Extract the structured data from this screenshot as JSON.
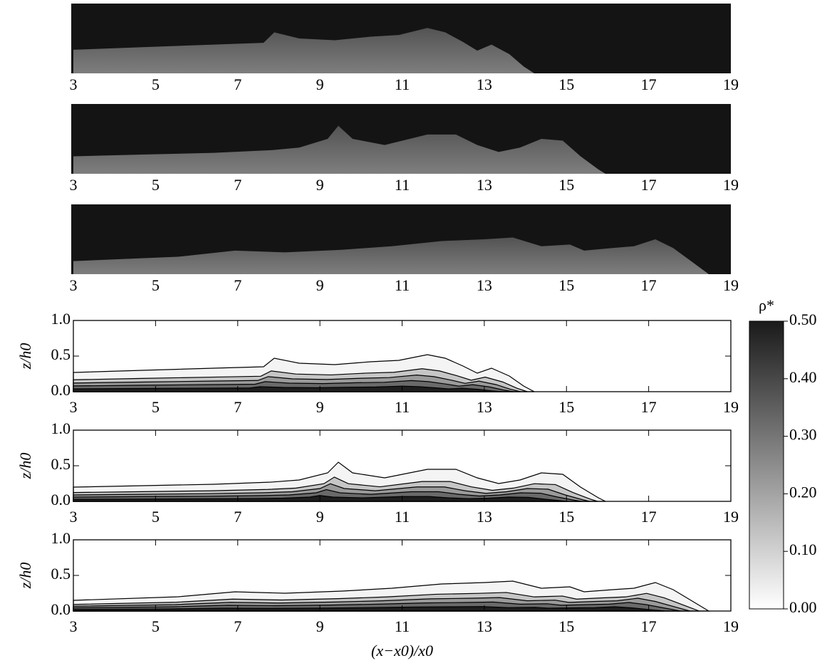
{
  "chart_data": [
    {
      "type": "image",
      "xlim": [
        3,
        19
      ],
      "xticks": [
        3,
        5,
        7,
        9,
        11,
        13,
        15,
        17,
        19
      ]
    },
    {
      "type": "image",
      "xlim": [
        3,
        19
      ],
      "xticks": [
        3,
        5,
        7,
        9,
        11,
        13,
        15,
        17,
        19
      ]
    },
    {
      "type": "image",
      "xlim": [
        3,
        19
      ],
      "xticks": [
        3,
        5,
        7,
        9,
        11,
        13,
        15,
        17,
        19
      ]
    },
    {
      "type": "contour",
      "ylabel": "z/h0",
      "xlim": [
        3,
        19
      ],
      "xticks": [
        3,
        5,
        7,
        9,
        11,
        13,
        15,
        17,
        19
      ],
      "ylim": [
        0,
        1
      ],
      "yticks": [
        {
          "value": 0,
          "label": "0.0"
        },
        {
          "value": 0.5,
          "label": "0.5"
        },
        {
          "value": 1,
          "label": "1.0"
        }
      ]
    },
    {
      "type": "contour",
      "ylabel": "z/h0",
      "xlim": [
        3,
        19
      ],
      "xticks": [
        3,
        5,
        7,
        9,
        11,
        13,
        15,
        17,
        19
      ],
      "ylim": [
        0,
        1
      ],
      "yticks": [
        {
          "value": 0,
          "label": "0.0"
        },
        {
          "value": 0.5,
          "label": "0.5"
        },
        {
          "value": 1,
          "label": "1.0"
        }
      ]
    },
    {
      "type": "contour",
      "ylabel": "z/h0",
      "xlabel": "(x−x0)/x0",
      "xlim": [
        3,
        19
      ],
      "xticks": [
        3,
        5,
        7,
        9,
        11,
        13,
        15,
        17,
        19
      ],
      "ylim": [
        0,
        1
      ],
      "yticks": [
        {
          "value": 0,
          "label": "0.0"
        },
        {
          "value": 0.5,
          "label": "0.5"
        },
        {
          "value": 1,
          "label": "1.0"
        }
      ]
    },
    {
      "type": "colorbar",
      "title": "ρ*",
      "ylim": [
        0,
        0.5
      ],
      "yticks": [
        {
          "value": 0,
          "label": "0.00"
        },
        {
          "value": 0.1,
          "label": "0.10"
        },
        {
          "value": 0.2,
          "label": "0.20"
        },
        {
          "value": 0.3,
          "label": "0.30"
        },
        {
          "value": 0.4,
          "label": "0.40"
        },
        {
          "value": 0.5,
          "label": "0.50"
        }
      ]
    }
  ]
}
